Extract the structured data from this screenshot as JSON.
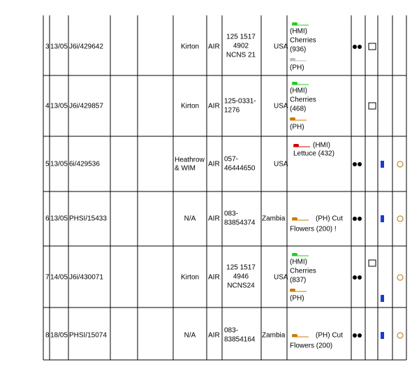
{
  "table": {
    "rows": [
      {
        "no": "3",
        "date": "13/05",
        "ref": "J6i/429642",
        "port": [
          "Kirton"
        ],
        "mode": "AIR",
        "awb": [
          "125 1517",
          "4902",
          "NCNS 21"
        ],
        "country": "USA",
        "commodity": [
          "(HMI)",
          "Cherries",
          "(936)",
          "(PH)"
        ]
      },
      {
        "no": "4",
        "date": "13/05",
        "ref": "J6i/429857",
        "port": [
          "Kirton"
        ],
        "mode": "AIR",
        "awb": [
          "125-0331-",
          "1276"
        ],
        "country": "USA",
        "commodity": [
          "(HMI)",
          "Cherries",
          "(468)",
          "(PH)"
        ]
      },
      {
        "no": "5",
        "date": "13/05",
        "ref": "6i/429536",
        "port": [
          "Heathrow",
          "& WIM"
        ],
        "mode": "AIR",
        "awb": [
          "057-",
          "46444650"
        ],
        "country": "USA",
        "commodity": [
          "(HMI)",
          "Lettuce (432)"
        ]
      },
      {
        "no": "6",
        "date": "13/05",
        "ref": "PHSI/15433",
        "port": [
          "N/A"
        ],
        "mode": "AIR",
        "awb": [
          "083-",
          "83854374"
        ],
        "country": "Zambia",
        "commodity": [
          "(PH)  Cut",
          "Flowers (200) !"
        ]
      },
      {
        "no": "7",
        "date": "14/05",
        "ref": "J6i/430071",
        "port": [
          "Kirton"
        ],
        "mode": "AIR",
        "awb": [
          "125 1517",
          "4946",
          "NCNS24"
        ],
        "country": "USA",
        "commodity": [
          "(HMI)",
          "Cherries",
          "(837)",
          "(PH)"
        ]
      },
      {
        "no": "8",
        "date": "18/05",
        "ref": "PHSI/15074",
        "port": [
          "N/A"
        ],
        "mode": "AIR",
        "awb": [
          "083-",
          "83854164"
        ],
        "country": "Zambia",
        "commodity": [
          "(PH)  Cut",
          "Flowers (200)"
        ]
      }
    ]
  }
}
